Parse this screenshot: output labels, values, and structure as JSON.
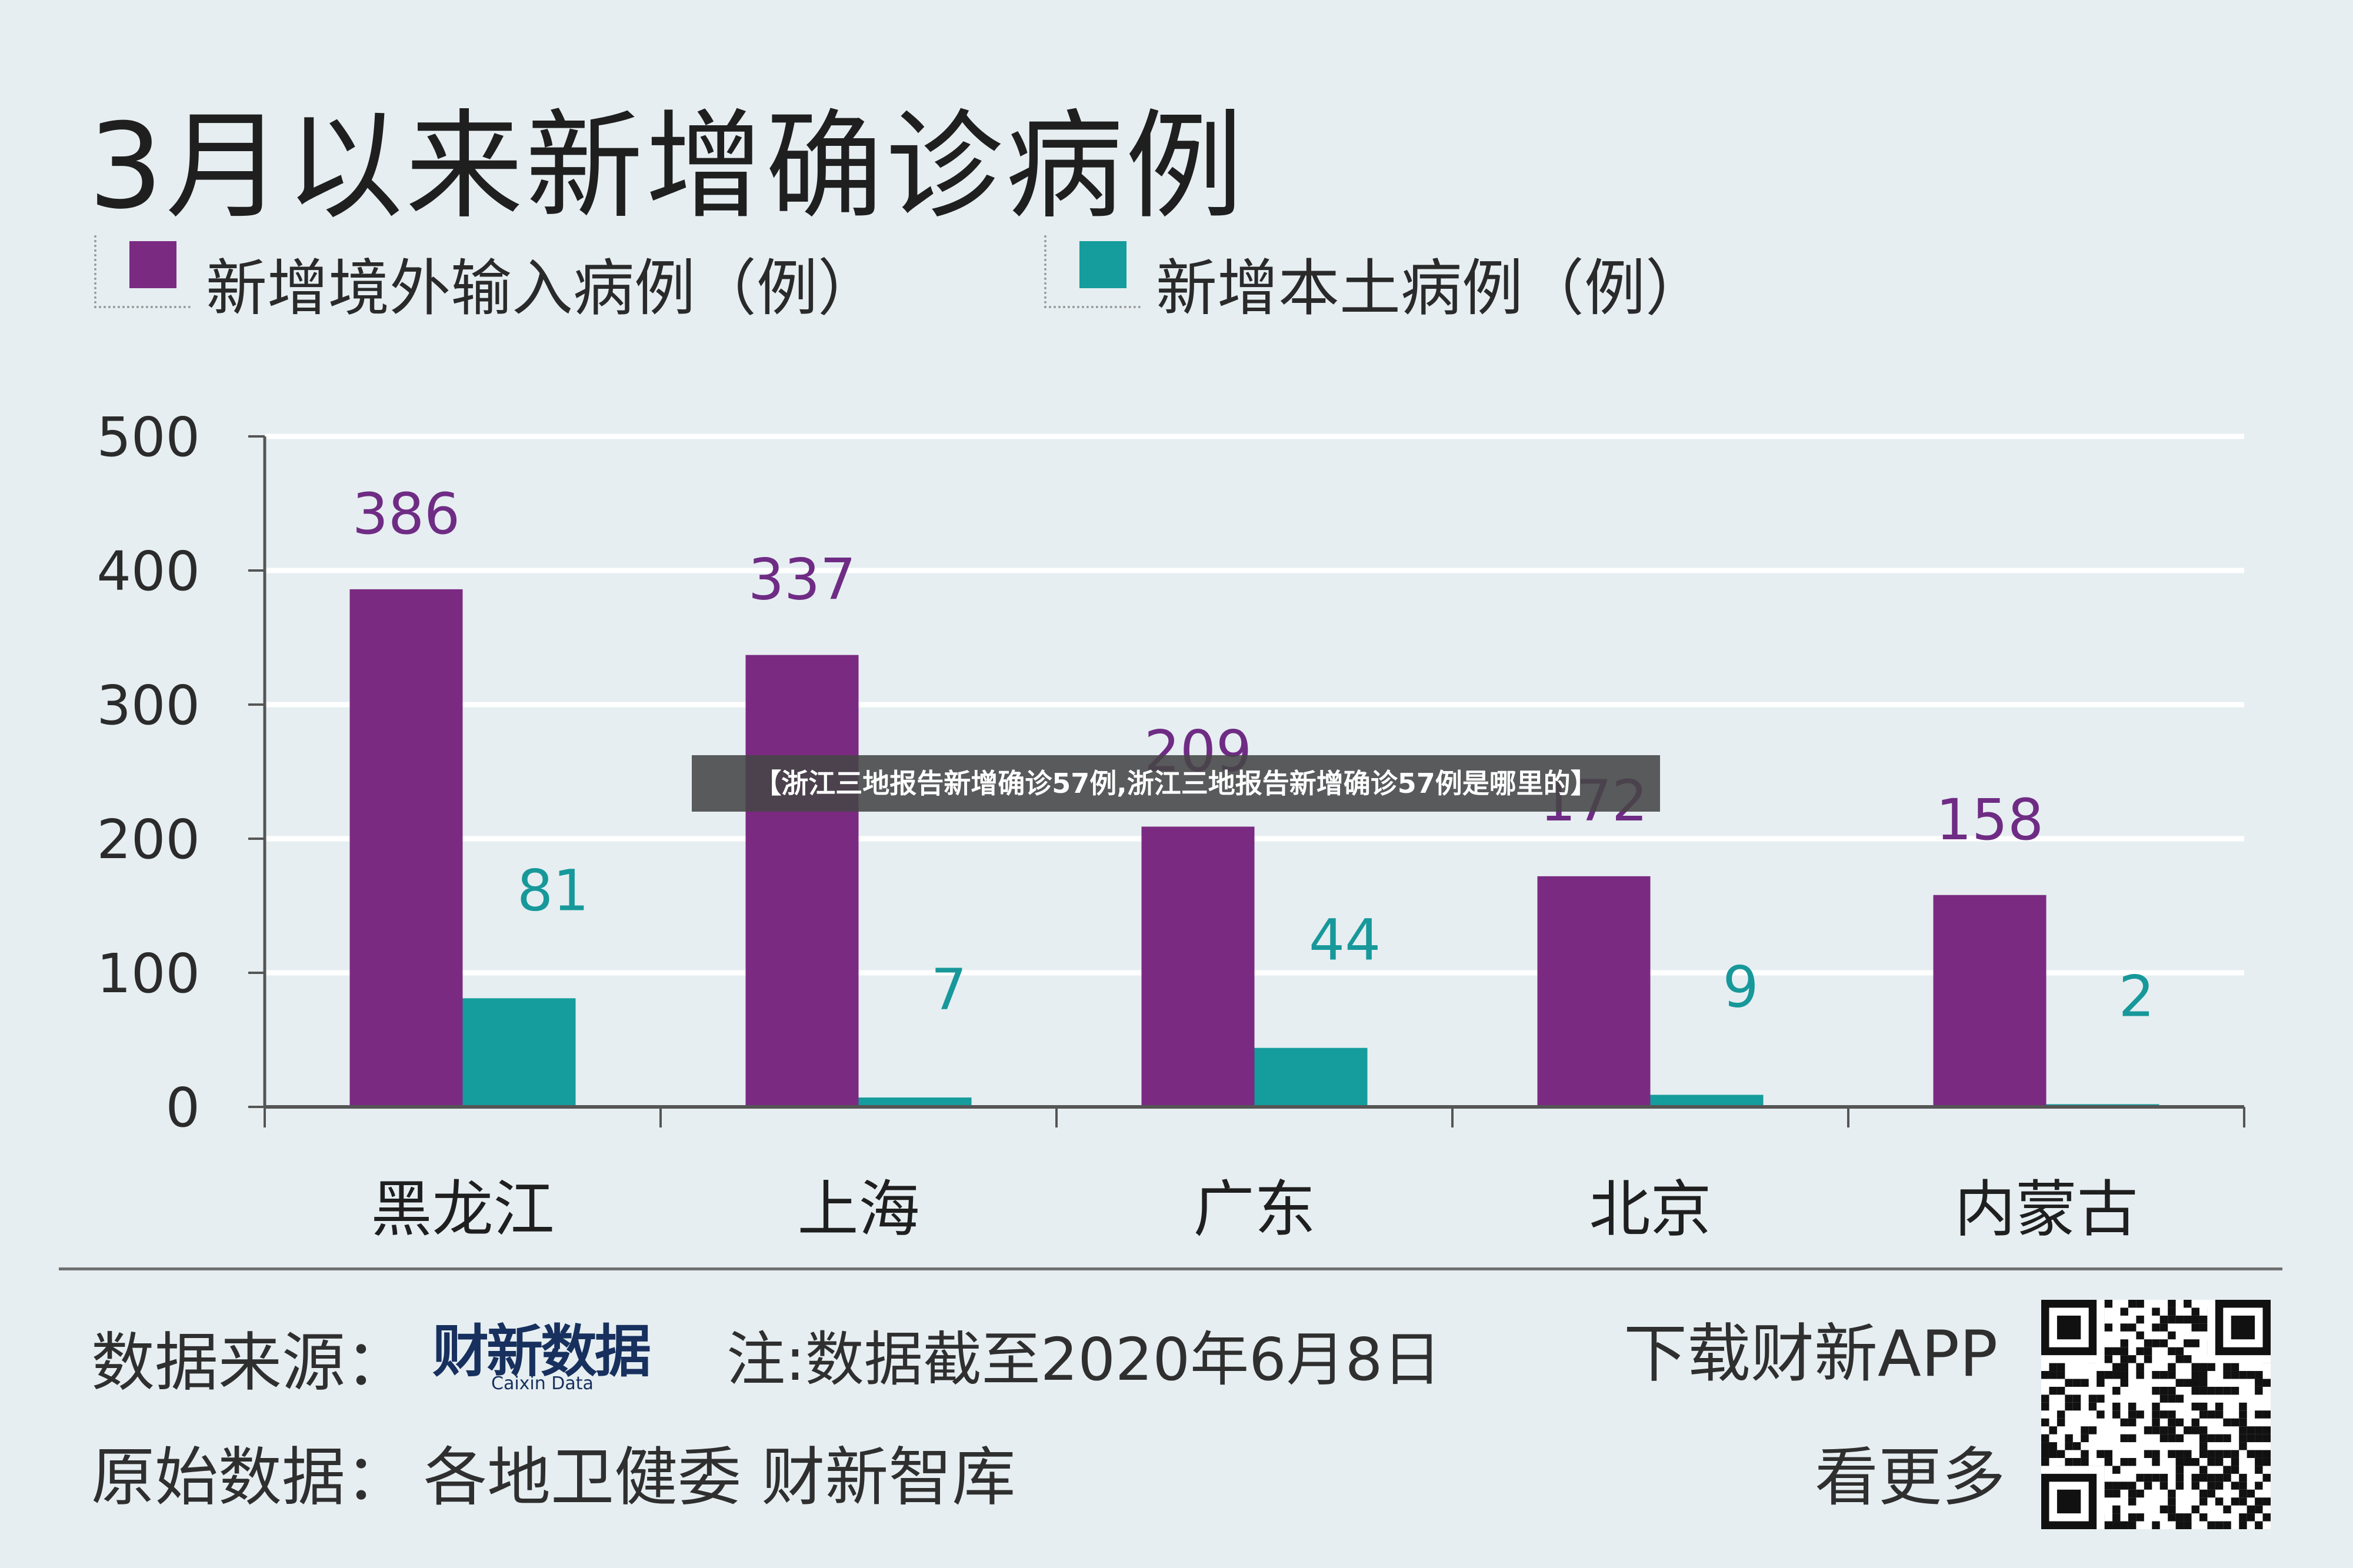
{
  "title": "3月以来新增确诊病例",
  "legend": [
    {
      "label": "新增境外输入病例（例）",
      "color": "#7b2a82"
    },
    {
      "label": "新增本土病例（例）",
      "color": "#159c9c"
    }
  ],
  "overlay_banner": "【浙江三地报告新增确诊57例,浙江三地报告新增确诊57例是哪里的】",
  "footer": {
    "source_label": "数据来源：",
    "logo_text": "财新数据",
    "logo_sub": "Caixin Data",
    "note": "注:数据截至2020年6月8日",
    "download": "下载财新APP",
    "more": "看更多",
    "origin_label": "原始数据：",
    "origin_value": "各地卫健委 财新智库"
  },
  "chart_data": {
    "type": "bar",
    "categories": [
      "黑龙江",
      "上海",
      "广东",
      "北京",
      "内蒙古"
    ],
    "series": [
      {
        "name": "新增境外输入病例（例）",
        "values": [
          386,
          337,
          209,
          172,
          158
        ],
        "color": "#7b2a82"
      },
      {
        "name": "新增本土病例（例）",
        "values": [
          81,
          7,
          44,
          9,
          2
        ],
        "color": "#159c9c"
      }
    ],
    "yticks": [
      0,
      100,
      200,
      300,
      400,
      500
    ],
    "ylim": [
      0,
      500
    ],
    "grid": true
  }
}
